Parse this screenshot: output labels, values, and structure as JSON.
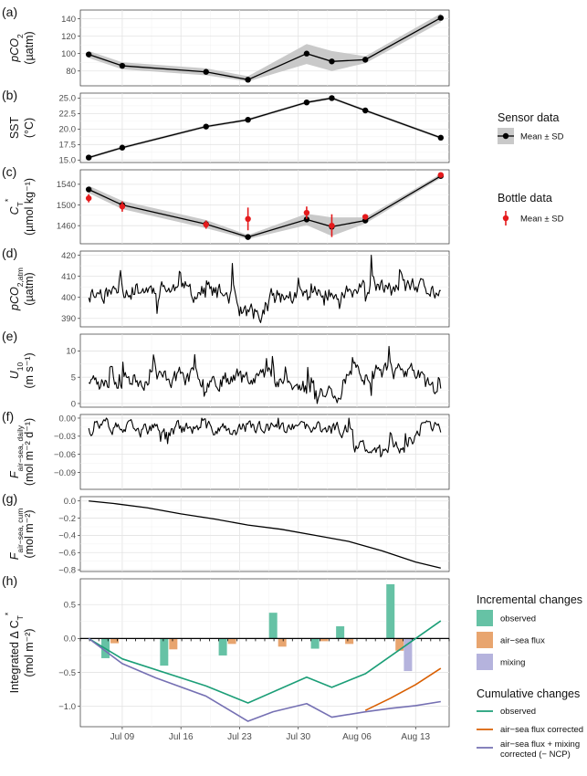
{
  "x_axis": {
    "ticks": [
      {
        "date": "2017-07-09",
        "label": "Jul 09"
      },
      {
        "date": "2017-07-16",
        "label": "Jul 16"
      },
      {
        "date": "2017-07-23",
        "label": "Jul 23"
      },
      {
        "date": "2017-07-30",
        "label": "Jul 30"
      },
      {
        "date": "2017-08-06",
        "label": "Aug 06"
      },
      {
        "date": "2017-08-13",
        "label": "Aug 13"
      }
    ],
    "range": [
      "2017-07-04",
      "2017-08-17"
    ]
  },
  "panels": [
    {
      "key": "a",
      "label": "(a)",
      "ylab_main": "pCO",
      "ylab_sub": "2",
      "ylab_sup": "",
      "ylab_tail": "",
      "ylab2": "(µatm)"
    },
    {
      "key": "b",
      "label": "(b)",
      "ylab_main": "SST",
      "ylab_sub": "",
      "ylab_sup": "",
      "ylab_tail": "",
      "ylab2": "(°C)"
    },
    {
      "key": "c",
      "label": "(c)",
      "ylab_main": "C",
      "ylab_sub": "T",
      "ylab_sup": "*",
      "ylab_tail": "",
      "ylab2": "(µmol kg⁻¹)"
    },
    {
      "key": "d",
      "label": "(d)",
      "ylab_main": "pCO",
      "ylab_sub": "2,atm",
      "ylab_sup": "",
      "ylab_tail": "",
      "ylab2": "(µatm)"
    },
    {
      "key": "e",
      "label": "(e)",
      "ylab_main": "U",
      "ylab_sub": "10",
      "ylab_sup": "",
      "ylab_tail": "",
      "ylab2": "(m s⁻¹)"
    },
    {
      "key": "f",
      "label": "(f)",
      "ylab_main": "F",
      "ylab_sub": "air−sea, daily",
      "ylab_sup": "",
      "ylab_tail": "",
      "ylab2": "(mol m⁻² d⁻¹)"
    },
    {
      "key": "g",
      "label": "(g)",
      "ylab_main": "F",
      "ylab_sub": "air−sea, cum",
      "ylab_sup": "",
      "ylab_tail": "",
      "ylab2": "(mol m⁻²)"
    },
    {
      "key": "h",
      "label": "(h)",
      "ylab_main": "Integrated Δ C",
      "ylab_sub": "T",
      "ylab_sup": "*",
      "ylab_tail": "",
      "ylab2": "(mol m⁻²)"
    }
  ],
  "legends": {
    "sensor": {
      "title": "Sensor data",
      "item": "Mean ± SD"
    },
    "bottle": {
      "title": "Bottle data",
      "item": "Mean ± SD"
    },
    "incremental": {
      "title": "Incremental changes",
      "items": [
        "observed",
        "air−sea flux",
        "mixing"
      ]
    },
    "cumulative": {
      "title": "Cumulative changes",
      "items": [
        "observed",
        "air−sea flux corrected",
        "air−sea flux + mixing",
        "corrected (− NCP)"
      ]
    }
  },
  "colors": {
    "observed": "#66c2a5",
    "airsea": "#e8a56f",
    "mixing": "#b5b3dd",
    "cum_observed": "#1b9e77",
    "cum_airsea": "#d95f02",
    "cum_mixing": "#7570b3",
    "ribbon": "#c9c9c9",
    "bottle": "#e41a1c"
  },
  "chart_data": [
    {
      "panel": "a",
      "type": "line",
      "x": [
        "2017-07-05",
        "2017-07-09",
        "2017-07-19",
        "2017-07-24",
        "2017-07-31",
        "2017-08-03",
        "2017-08-07",
        "2017-08-16"
      ],
      "y": [
        99,
        86,
        79,
        70,
        100,
        91,
        93,
        141
      ],
      "sd_low": [
        95,
        82,
        75,
        68,
        88,
        80,
        89,
        136
      ],
      "sd_high": [
        103,
        90,
        83,
        74,
        111,
        103,
        97,
        146
      ],
      "ylim": [
        63,
        150
      ],
      "yticks": [
        80,
        100,
        120,
        140
      ]
    },
    {
      "panel": "b",
      "type": "line",
      "x": [
        "2017-07-05",
        "2017-07-09",
        "2017-07-19",
        "2017-07-24",
        "2017-07-31",
        "2017-08-03",
        "2017-08-07",
        "2017-08-16"
      ],
      "y": [
        15.4,
        17.0,
        20.4,
        21.5,
        24.3,
        25.0,
        23.0,
        18.6
      ],
      "sd_low": [
        15.2,
        16.8,
        20.2,
        21.3,
        24.1,
        24.8,
        22.8,
        18.4
      ],
      "sd_high": [
        15.6,
        17.2,
        20.6,
        21.7,
        24.5,
        25.2,
        23.2,
        18.8
      ],
      "ylim": [
        14.6,
        25.8
      ],
      "yticks": [
        15.0,
        17.5,
        20.0,
        22.5,
        25.0
      ]
    },
    {
      "panel": "c",
      "type": "line",
      "x": [
        "2017-07-05",
        "2017-07-09",
        "2017-07-19",
        "2017-07-24",
        "2017-07-31",
        "2017-08-03",
        "2017-08-07",
        "2017-08-16"
      ],
      "y": [
        1530,
        1500,
        1463,
        1438,
        1472,
        1458,
        1470,
        1556
      ],
      "sd_low": [
        1523,
        1492,
        1455,
        1434,
        1461,
        1440,
        1464,
        1552
      ],
      "sd_high": [
        1537,
        1508,
        1471,
        1442,
        1483,
        1476,
        1476,
        1560
      ],
      "bottle_x": [
        "2017-07-05",
        "2017-07-09",
        "2017-07-19",
        "2017-07-24",
        "2017-07-31",
        "2017-08-03",
        "2017-08-07",
        "2017-08-16"
      ],
      "bottle_y": [
        1513,
        1497,
        1462,
        1473,
        1485,
        1460,
        1477,
        1558
      ],
      "bottle_sd": [
        8,
        10,
        8,
        22,
        12,
        22,
        5,
        3
      ],
      "ylim": [
        1425,
        1568
      ],
      "yticks": [
        1460,
        1500,
        1540
      ]
    },
    {
      "panel": "d",
      "type": "line",
      "series_seed": 11,
      "ylim": [
        386,
        422
      ],
      "yticks": [
        390,
        400,
        410,
        420
      ],
      "range": [
        388,
        420
      ],
      "base": 401,
      "amp": 8
    },
    {
      "panel": "e",
      "type": "line",
      "series_seed": 23,
      "ylim": [
        -0.7,
        13.2
      ],
      "yticks": [
        0,
        5,
        10
      ],
      "range": [
        0,
        13
      ],
      "base": 5,
      "amp": 3
    },
    {
      "panel": "f",
      "type": "line",
      "series_seed": 37,
      "ylim": [
        -0.118,
        0.006
      ],
      "yticks": [
        -0.09,
        -0.06,
        -0.03,
        0.0
      ],
      "range": [
        -0.11,
        0.0
      ],
      "base": -0.02,
      "amp": 0.02
    },
    {
      "panel": "g",
      "type": "line",
      "x": [
        "2017-07-05",
        "2017-07-08",
        "2017-07-12",
        "2017-07-16",
        "2017-07-20",
        "2017-07-24",
        "2017-07-28",
        "2017-08-01",
        "2017-08-05",
        "2017-08-09",
        "2017-08-13",
        "2017-08-16"
      ],
      "y": [
        0.0,
        -0.03,
        -0.08,
        -0.15,
        -0.21,
        -0.28,
        -0.33,
        -0.4,
        -0.47,
        -0.58,
        -0.71,
        -0.78
      ],
      "ylim": [
        -0.82,
        0.05
      ],
      "yticks": [
        -0.8,
        -0.6,
        -0.4,
        -0.2,
        0.0
      ]
    },
    {
      "panel": "h",
      "type": "bar",
      "incremental_observed": {
        "x": [
          "2017-07-07",
          "2017-07-14",
          "2017-07-21",
          "2017-07-27",
          "2017-08-01",
          "2017-08-04",
          "2017-08-10"
        ],
        "values": [
          -0.29,
          -0.4,
          -0.25,
          0.38,
          -0.15,
          0.18,
          0.8
        ]
      },
      "incremental_airsea": {
        "x": [
          "2017-07-07",
          "2017-07-14",
          "2017-07-21",
          "2017-07-27",
          "2017-08-01",
          "2017-08-04",
          "2017-08-10"
        ],
        "values": [
          -0.07,
          -0.16,
          -0.08,
          -0.12,
          -0.04,
          -0.08,
          -0.18
        ]
      },
      "incremental_mixing": {
        "x": [
          "2017-08-11"
        ],
        "values": [
          -0.48
        ]
      },
      "cumulative": [
        {
          "name": "observed",
          "x": [
            "2017-07-05",
            "2017-07-09",
            "2017-07-19",
            "2017-07-24",
            "2017-07-31",
            "2017-08-03",
            "2017-08-07",
            "2017-08-16"
          ],
          "y": [
            0.0,
            -0.3,
            -0.7,
            -0.95,
            -0.57,
            -0.72,
            -0.52,
            0.26
          ]
        },
        {
          "name": "air−sea flux corrected",
          "x": [
            "2017-08-07",
            "2017-08-10",
            "2017-08-13",
            "2017-08-16"
          ],
          "y": [
            -1.06,
            -0.88,
            -0.68,
            -0.44
          ]
        },
        {
          "name": "air−sea flux + mixing corrected (− NCP)",
          "x": [
            "2017-07-05",
            "2017-07-09",
            "2017-07-13",
            "2017-07-19",
            "2017-07-24",
            "2017-07-27",
            "2017-07-31",
            "2017-08-03",
            "2017-08-07",
            "2017-08-10",
            "2017-08-13",
            "2017-08-16"
          ],
          "y": [
            0.0,
            -0.37,
            -0.58,
            -0.85,
            -1.22,
            -1.08,
            -0.96,
            -1.16,
            -1.08,
            -1.03,
            -0.99,
            -0.93
          ]
        }
      ],
      "ylim": [
        -1.3,
        0.88
      ],
      "yticks": [
        -1.0,
        -0.5,
        0.0,
        0.5
      ]
    }
  ]
}
